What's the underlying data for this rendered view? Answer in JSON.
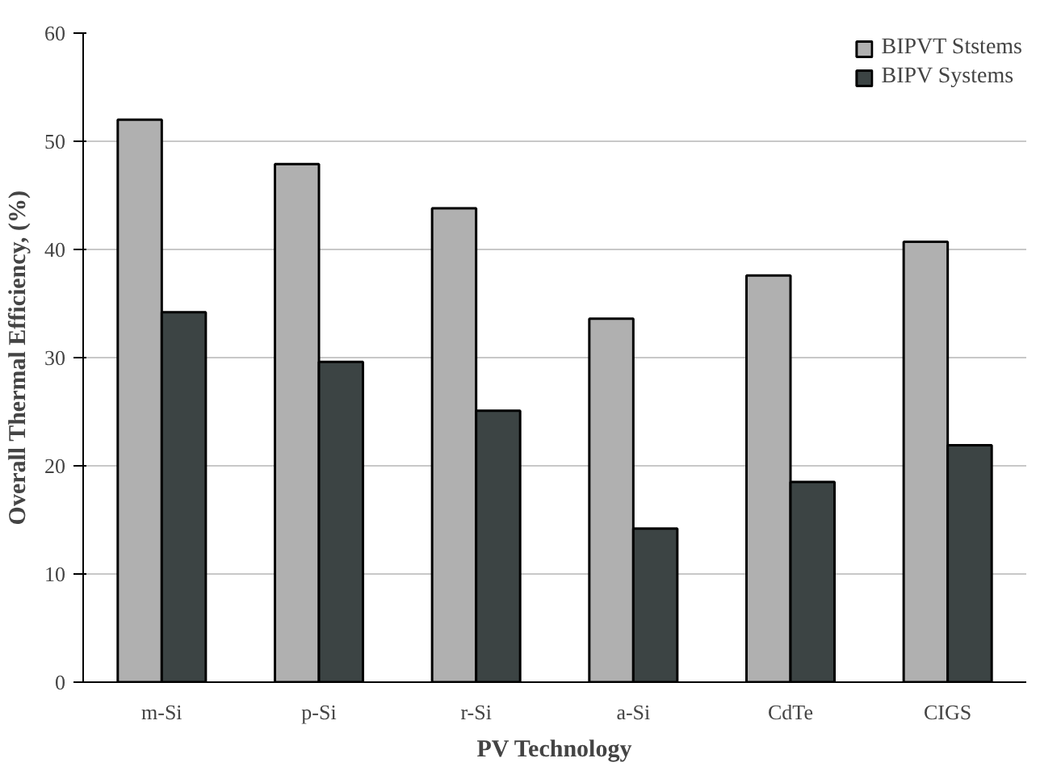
{
  "chart_data": {
    "type": "bar",
    "xlabel": "PV Technology",
    "ylabel": "Overall Thermal Efficiency, (%)",
    "categories": [
      "m-Si",
      "p-Si",
      "r-Si",
      "a-Si",
      "CdTe",
      "CIGS"
    ],
    "series": [
      {
        "name": "BIPVT Ststems",
        "color": "#b0b0b0",
        "values": [
          52.0,
          47.9,
          43.8,
          33.6,
          37.6,
          40.7
        ]
      },
      {
        "name": "BIPV Systems",
        "color": "#3c4444",
        "values": [
          34.2,
          29.6,
          25.1,
          14.2,
          18.5,
          21.9
        ]
      }
    ],
    "ylim": [
      0,
      60
    ],
    "yticks": [
      0,
      10,
      20,
      30,
      40,
      50,
      60
    ],
    "grid": "y",
    "legend": "top right"
  }
}
